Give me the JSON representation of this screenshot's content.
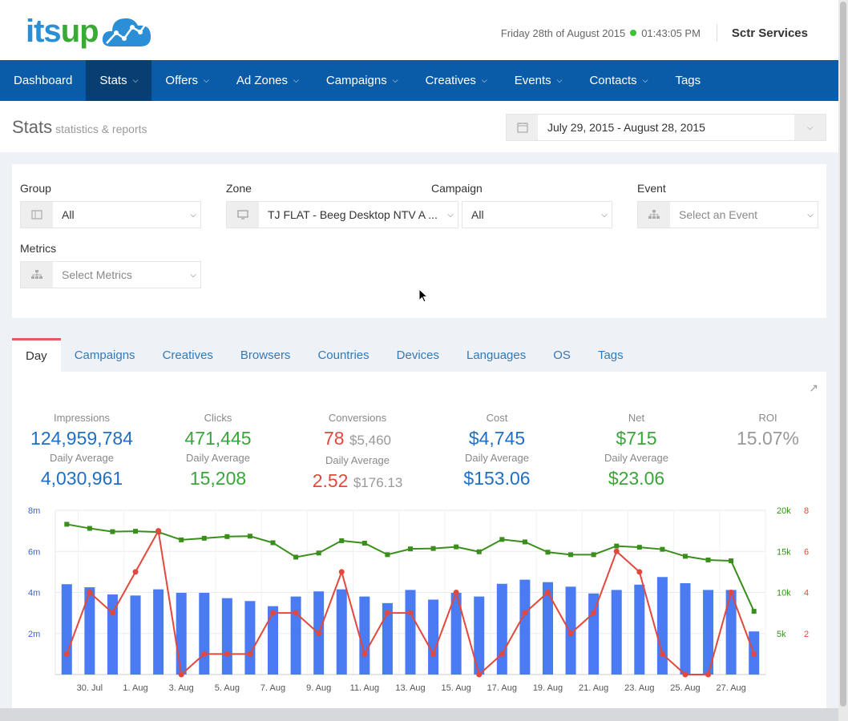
{
  "header": {
    "logo_text_a": "its",
    "logo_text_b": "up",
    "date": "Friday 28th of August 2015",
    "time": "01:43:05 PM",
    "user": "Sctr Services"
  },
  "nav": [
    {
      "label": "Dashboard",
      "caret": false,
      "active": false
    },
    {
      "label": "Stats",
      "caret": true,
      "active": true
    },
    {
      "label": "Offers",
      "caret": true,
      "active": false
    },
    {
      "label": "Ad Zones",
      "caret": true,
      "active": false
    },
    {
      "label": "Campaigns",
      "caret": true,
      "active": false
    },
    {
      "label": "Creatives",
      "caret": true,
      "active": false
    },
    {
      "label": "Events",
      "caret": true,
      "active": false
    },
    {
      "label": "Contacts",
      "caret": true,
      "active": false
    },
    {
      "label": "Tags",
      "caret": false,
      "active": false
    }
  ],
  "page": {
    "title": "Stats",
    "subtitle": "statistics & reports",
    "daterange": "July 29, 2015 - August 28, 2015"
  },
  "filters": {
    "group": {
      "label": "Group",
      "value": "All"
    },
    "zone": {
      "label": "Zone",
      "value": "TJ FLAT - Beeg Desktop NTV A ..."
    },
    "campaign": {
      "label": "Campaign",
      "value": "All"
    },
    "event": {
      "label": "Event",
      "placeholder": "Select an Event"
    },
    "metrics": {
      "label": "Metrics",
      "placeholder": "Select Metrics"
    }
  },
  "tabs": [
    "Day",
    "Campaigns",
    "Creatives",
    "Browsers",
    "Countries",
    "Devices",
    "Languages",
    "OS",
    "Tags"
  ],
  "active_tab": "Day",
  "stats": {
    "impressions": {
      "label": "Impressions",
      "value": "124,959,784",
      "avg_label": "Daily Average",
      "avg": "4,030,961"
    },
    "clicks": {
      "label": "Clicks",
      "value": "471,445",
      "avg_label": "Daily Average",
      "avg": "15,208"
    },
    "conversions": {
      "label": "Conversions",
      "value": "78",
      "value2": "$5,460",
      "avg_label": "Daily Average",
      "avg": "2.52",
      "avg2": "$176.13"
    },
    "cost": {
      "label": "Cost",
      "value": "$4,745",
      "avg_label": "Daily Average",
      "avg": "$153.06"
    },
    "net": {
      "label": "Net",
      "value": "$715",
      "avg_label": "Daily Average",
      "avg": "$23.06"
    },
    "roi": {
      "label": "ROI",
      "value": "15.07%"
    }
  },
  "colors": {
    "bars": "#4a7bf2",
    "clicks": "#3a8f1c",
    "conversions": "#e2483c",
    "left_axis": "#3b5fd6",
    "nav": "#0a5ca8"
  },
  "chart_data": {
    "type": "bar",
    "categories": [
      "29. Jul",
      "30. Jul",
      "31. Jul",
      "1. Aug",
      "2. Aug",
      "3. Aug",
      "4. Aug",
      "5. Aug",
      "6. Aug",
      "7. Aug",
      "8. Aug",
      "9. Aug",
      "10. Aug",
      "11. Aug",
      "12. Aug",
      "13. Aug",
      "14. Aug",
      "15. Aug",
      "16. Aug",
      "17. Aug",
      "18. Aug",
      "19. Aug",
      "20. Aug",
      "21. Aug",
      "22. Aug",
      "23. Aug",
      "24. Aug",
      "25. Aug",
      "26. Aug",
      "27. Aug",
      "28. Aug"
    ],
    "x_tick_labels": [
      "30. Jul",
      "1. Aug",
      "3. Aug",
      "5. Aug",
      "7. Aug",
      "9. Aug",
      "11. Aug",
      "13. Aug",
      "15. Aug",
      "17. Aug",
      "19. Aug",
      "21. Aug",
      "23. Aug",
      "25. Aug",
      "27. Aug"
    ],
    "series": [
      {
        "axis": "impressions",
        "type": "bar",
        "values": [
          4.4,
          4.25,
          3.9,
          3.85,
          4.15,
          3.98,
          3.98,
          3.72,
          3.58,
          3.33,
          3.8,
          4.05,
          4.15,
          3.8,
          3.48,
          4.12,
          3.65,
          3.98,
          3.8,
          4.42,
          4.62,
          4.5,
          4.28,
          3.95,
          4.12,
          4.38,
          4.75,
          4.45,
          4.12,
          4.12,
          2.1
        ]
      },
      {
        "axis": "clicks",
        "type": "line",
        "values": [
          18300,
          17800,
          17400,
          17450,
          17350,
          16400,
          16600,
          16800,
          16850,
          16050,
          14300,
          14800,
          16300,
          16000,
          14600,
          15300,
          15350,
          15550,
          14950,
          16450,
          16150,
          14900,
          14600,
          14600,
          15650,
          15500,
          15250,
          14400,
          13950,
          13850,
          7700
        ]
      },
      {
        "axis": "conversions",
        "type": "line",
        "values": [
          1,
          4,
          3,
          5,
          7,
          0,
          1,
          1,
          1,
          3,
          3,
          2,
          5,
          1,
          3,
          3,
          1,
          4,
          0,
          1,
          3,
          4,
          2,
          3,
          6,
          5,
          1,
          0,
          0,
          4,
          1
        ]
      }
    ],
    "y_left": {
      "ticks": [
        "2m",
        "4m",
        "6m",
        "8m"
      ],
      "max": 8
    },
    "y_right1": {
      "ticks": [
        "5k",
        "10k",
        "15k",
        "20k"
      ],
      "max": 20000
    },
    "y_right2": {
      "ticks": [
        "2",
        "4",
        "6",
        "8"
      ],
      "max": 8
    }
  }
}
